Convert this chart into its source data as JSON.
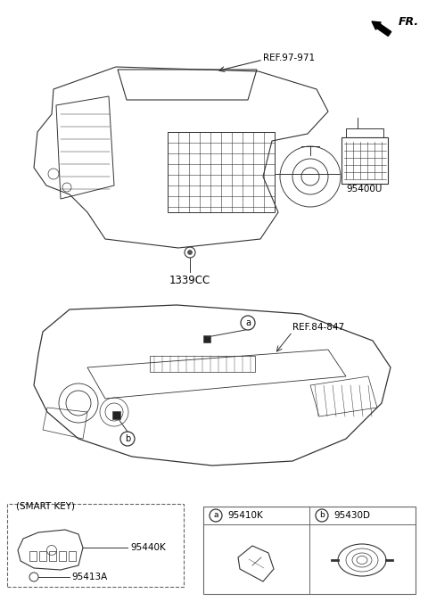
{
  "title": "",
  "bg_color": "#ffffff",
  "line_color": "#333333",
  "text_color": "#000000",
  "fr_label": "FR.",
  "ref1_label": "REF.97-971",
  "ref2_label": "REF.84-847",
  "part1_label": "95400U",
  "part2_label": "1339CC",
  "part3_label": "95410K",
  "part4_label": "95430D",
  "part5_label": "95440K",
  "part6_label": "95413A",
  "smart_key_label": "(SMART KEY)",
  "circle_a_label": "a",
  "circle_b_label": "b"
}
